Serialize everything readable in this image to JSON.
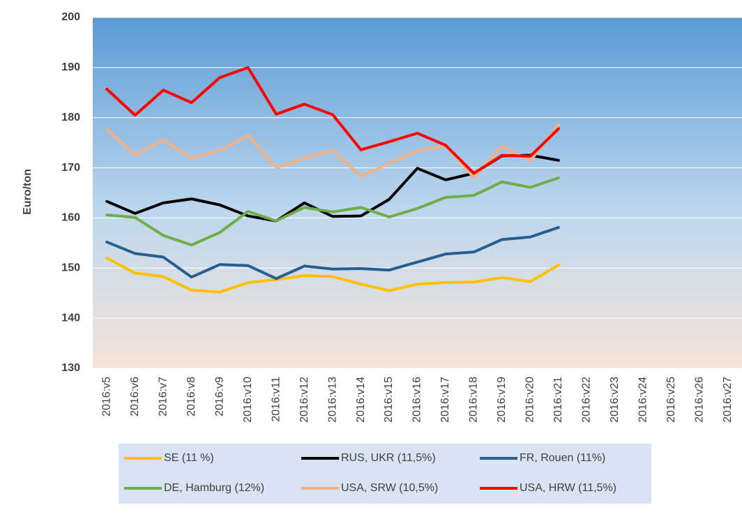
{
  "chart_data": {
    "type": "line",
    "ylabel": "Euro/ton",
    "categories": [
      "2016:v5",
      "2016:v6",
      "2016:v7",
      "2016:v8",
      "2016:v9",
      "2016:v10",
      "2016:v11",
      "2016:v12",
      "2016:v13",
      "2016:v14",
      "2016:v15",
      "2016:v16",
      "2016:v17",
      "2016:v18",
      "2016:v19",
      "2016:v20",
      "2016:v21",
      "2016:v22",
      "2016:v23",
      "2016:v24",
      "2016:v25",
      "2016:v26",
      "2016:v27"
    ],
    "series": [
      {
        "name": "SE (11 %)",
        "color": "#ffc000",
        "values": [
          152,
          149,
          148.3,
          145.6,
          145.2,
          147.1,
          147.7,
          148.5,
          148.3,
          146.8,
          145.5,
          146.8,
          147.1,
          147.2,
          148.1,
          147.3,
          150.6,
          null,
          null,
          null,
          null,
          null,
          null
        ]
      },
      {
        "name": "RUS, UKR (11,5%)",
        "color": "#000000",
        "values": [
          163.3,
          160.9,
          163,
          163.8,
          162.6,
          160.4,
          159.4,
          163,
          160.3,
          160.4,
          163.7,
          169.9,
          167.6,
          168.9,
          172.4,
          172.5,
          171.5,
          null,
          null,
          null,
          null,
          null,
          null
        ]
      },
      {
        "name": "FR, Rouen (11%)",
        "color": "#255e91",
        "values": [
          155.2,
          152.9,
          152.2,
          148.2,
          150.7,
          150.5,
          147.9,
          150.4,
          149.8,
          149.9,
          149.6,
          151.2,
          152.8,
          153.2,
          155.7,
          156.2,
          158.1,
          null,
          null,
          null,
          null,
          null,
          null
        ]
      },
      {
        "name": "DE, Hamburg (12%)",
        "color": "#70ad47",
        "values": [
          160.6,
          160.1,
          156.5,
          154.6,
          157.1,
          161.3,
          159.4,
          162.1,
          161.2,
          162.1,
          160.2,
          161.9,
          164.1,
          164.5,
          167.2,
          166.1,
          168,
          null,
          null,
          null,
          null,
          null,
          null
        ]
      },
      {
        "name": "USA, SRW (10,5%)",
        "color": "#f4b183",
        "values": [
          177.7,
          172.5,
          175.6,
          172,
          173.4,
          176.5,
          170,
          171.9,
          173.5,
          168.3,
          170.9,
          173.4,
          174.4,
          168.1,
          174.3,
          171.4,
          178.6,
          null,
          null,
          null,
          null,
          null,
          null
        ]
      },
      {
        "name": "USA, HRW (11,5%)",
        "color": "#ff0000",
        "values": [
          185.7,
          180.5,
          185.5,
          183,
          188,
          190,
          180.7,
          182.7,
          180.6,
          173.6,
          175.2,
          176.9,
          174.5,
          168.9,
          172.5,
          172.3,
          177.8,
          null,
          null,
          null,
          null,
          null,
          null
        ]
      }
    ],
    "ylim": [
      130,
      200
    ],
    "yticks": [
      130,
      140,
      150,
      160,
      170,
      180,
      190,
      200
    ],
    "grid": true,
    "legend": "bottom"
  }
}
